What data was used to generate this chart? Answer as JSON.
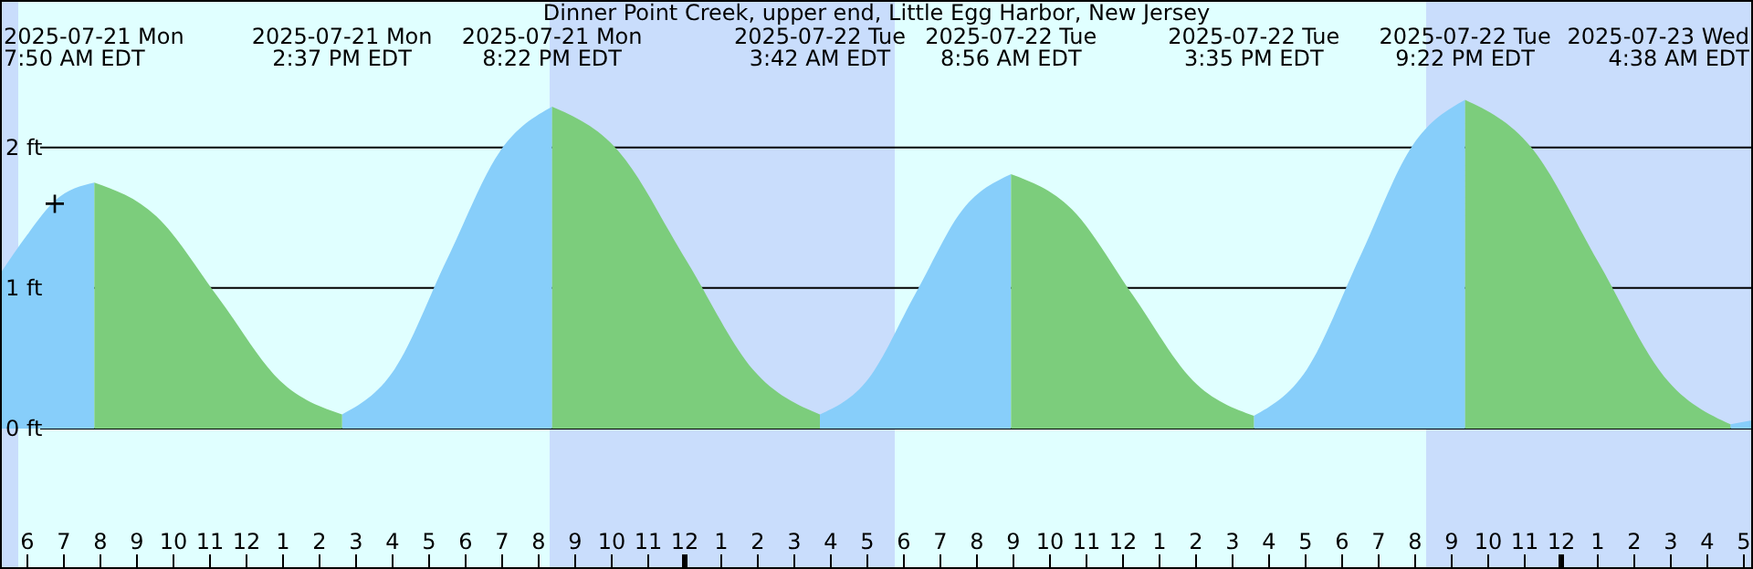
{
  "chart_data": {
    "type": "area",
    "title": "Dinner Point Creek, upper end, Little Egg Harbor, New Jersey",
    "x": [
      "2025-07-21T05:15",
      "2025-07-21T06:00",
      "2025-07-21T06:45",
      "2025-07-21T07:50",
      "2025-07-21T09:32",
      "2025-07-21T11:14",
      "2025-07-21T12:55",
      "2025-07-21T14:37",
      "2025-07-21T16:03",
      "2025-07-21T17:29",
      "2025-07-21T18:56",
      "2025-07-21T20:22",
      "2025-07-21T22:12",
      "2025-07-22T00:02",
      "2025-07-22T01:52",
      "2025-07-22T03:42",
      "2025-07-22T05:01",
      "2025-07-22T06:19",
      "2025-07-22T07:37",
      "2025-07-22T08:56",
      "2025-07-22T10:36",
      "2025-07-22T12:16",
      "2025-07-22T13:55",
      "2025-07-22T15:35",
      "2025-07-22T17:02",
      "2025-07-22T18:29",
      "2025-07-22T19:55",
      "2025-07-22T21:22",
      "2025-07-22T23:11",
      "2025-07-23T01:00",
      "2025-07-23T02:49",
      "2025-07-23T04:38",
      "2025-07-23T05:15"
    ],
    "series": [
      {
        "color": "#87cefa",
        "values": [
          1.1,
          1.38,
          1.62,
          1.75,
          null,
          null,
          null,
          0.1,
          0.42,
          1.2,
          1.97,
          2.29,
          null,
          null,
          null,
          0.1,
          0.35,
          0.96,
          1.56,
          1.81,
          null,
          null,
          null,
          0.09,
          0.42,
          1.22,
          2.01,
          2.34,
          null,
          null,
          null,
          0.03,
          0.06
        ]
      },
      {
        "color": "#7ccd7c",
        "values": [
          null,
          null,
          null,
          1.75,
          1.51,
          0.93,
          0.34,
          0.1,
          null,
          null,
          null,
          2.29,
          1.97,
          1.2,
          0.42,
          0.1,
          null,
          null,
          null,
          1.81,
          1.56,
          0.95,
          0.34,
          0.09,
          null,
          null,
          null,
          2.34,
          2.0,
          1.19,
          0.37,
          0.03,
          null
        ]
      },
      {
        "type": "scatter",
        "marker": "cross",
        "color": "#000000",
        "x": [
          "2025-07-21T06:45"
        ],
        "values": [
          1.6
        ]
      }
    ],
    "xlim": [
      "2025-07-21T05:15",
      "2025-07-23T05:15"
    ],
    "xticks": [
      {
        "value": "2025-07-21T06:00",
        "label": "6"
      },
      {
        "value": "2025-07-21T07:00",
        "label": "7"
      },
      {
        "value": "2025-07-21T08:00",
        "label": "8"
      },
      {
        "value": "2025-07-21T09:00",
        "label": "9"
      },
      {
        "value": "2025-07-21T10:00",
        "label": "10"
      },
      {
        "value": "2025-07-21T11:00",
        "label": "11"
      },
      {
        "value": "2025-07-21T12:00",
        "label": "12"
      },
      {
        "value": "2025-07-21T13:00",
        "label": "1"
      },
      {
        "value": "2025-07-21T14:00",
        "label": "2"
      },
      {
        "value": "2025-07-21T15:00",
        "label": "3"
      },
      {
        "value": "2025-07-21T16:00",
        "label": "4"
      },
      {
        "value": "2025-07-21T17:00",
        "label": "5"
      },
      {
        "value": "2025-07-21T18:00",
        "label": "6"
      },
      {
        "value": "2025-07-21T19:00",
        "label": "7"
      },
      {
        "value": "2025-07-21T20:00",
        "label": "8"
      },
      {
        "value": "2025-07-21T21:00",
        "label": "9"
      },
      {
        "value": "2025-07-21T22:00",
        "label": "10"
      },
      {
        "value": "2025-07-21T23:00",
        "label": "11"
      },
      {
        "value": "2025-07-22T00:00",
        "label": "12"
      },
      {
        "value": "2025-07-22T01:00",
        "label": "1"
      },
      {
        "value": "2025-07-22T02:00",
        "label": "2"
      },
      {
        "value": "2025-07-22T03:00",
        "label": "3"
      },
      {
        "value": "2025-07-22T04:00",
        "label": "4"
      },
      {
        "value": "2025-07-22T05:00",
        "label": "5"
      },
      {
        "value": "2025-07-22T06:00",
        "label": "6"
      },
      {
        "value": "2025-07-22T07:00",
        "label": "7"
      },
      {
        "value": "2025-07-22T08:00",
        "label": "8"
      },
      {
        "value": "2025-07-22T09:00",
        "label": "9"
      },
      {
        "value": "2025-07-22T10:00",
        "label": "10"
      },
      {
        "value": "2025-07-22T11:00",
        "label": "11"
      },
      {
        "value": "2025-07-22T12:00",
        "label": "12"
      },
      {
        "value": "2025-07-22T13:00",
        "label": "1"
      },
      {
        "value": "2025-07-22T14:00",
        "label": "2"
      },
      {
        "value": "2025-07-22T15:00",
        "label": "3"
      },
      {
        "value": "2025-07-22T16:00",
        "label": "4"
      },
      {
        "value": "2025-07-22T17:00",
        "label": "5"
      },
      {
        "value": "2025-07-22T18:00",
        "label": "6"
      },
      {
        "value": "2025-07-22T19:00",
        "label": "7"
      },
      {
        "value": "2025-07-22T20:00",
        "label": "8"
      },
      {
        "value": "2025-07-22T21:00",
        "label": "9"
      },
      {
        "value": "2025-07-22T22:00",
        "label": "10"
      },
      {
        "value": "2025-07-22T23:00",
        "label": "11"
      },
      {
        "value": "2025-07-23T00:00",
        "label": "12"
      },
      {
        "value": "2025-07-23T01:00",
        "label": "1"
      },
      {
        "value": "2025-07-23T02:00",
        "label": "2"
      },
      {
        "value": "2025-07-23T03:00",
        "label": "3"
      },
      {
        "value": "2025-07-23T04:00",
        "label": "4"
      },
      {
        "value": "2025-07-23T05:00",
        "label": "5"
      }
    ],
    "ylim": [
      -1.0,
      3.05
    ],
    "yticks": [
      {
        "value": 0,
        "label": "0 ft"
      },
      {
        "value": 1,
        "label": "1 ft"
      },
      {
        "value": 2,
        "label": "2 ft"
      }
    ],
    "grid": "y",
    "bands": [
      {
        "axis": "x",
        "from": "2025-07-21T05:15",
        "to": "2025-07-21T05:45",
        "color": "#c9ddfc"
      },
      {
        "axis": "x",
        "from": "2025-07-21T05:45",
        "to": "2025-07-21T20:18",
        "color": "#e0ffff"
      },
      {
        "axis": "x",
        "from": "2025-07-21T20:18",
        "to": "2025-07-22T05:45",
        "color": "#c9ddfc"
      },
      {
        "axis": "x",
        "from": "2025-07-22T05:45",
        "to": "2025-07-22T20:18",
        "color": "#e0ffff"
      },
      {
        "axis": "x",
        "from": "2025-07-22T20:18",
        "to": "2025-07-23T05:15",
        "color": "#c9ddfc"
      }
    ],
    "annotations": [
      "2025-07-21 Mon\n7:50 AM EDT",
      "2025-07-21 Mon\n2:37 PM EDT",
      "2025-07-21 Mon\n8:22 PM EDT",
      "2025-07-22 Tue\n3:42 AM EDT",
      "2025-07-22 Tue\n8:56 AM EDT",
      "2025-07-22 Tue\n3:35 PM EDT",
      "2025-07-22 Tue\n9:22 PM EDT",
      "2025-07-23 Wed\n4:38 AM EDT"
    ]
  }
}
